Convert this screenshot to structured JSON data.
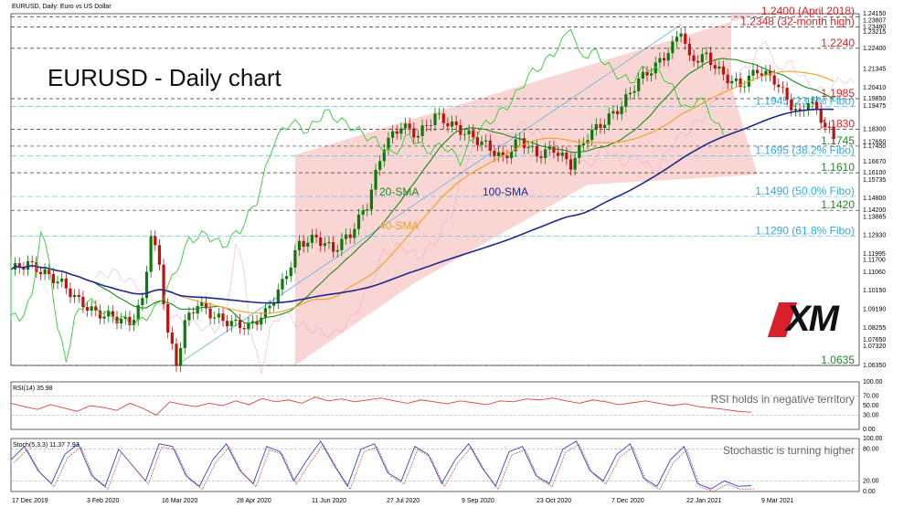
{
  "header": {
    "symbol_line": "EURUSD, Daily:  Euro vs US Dollar",
    "chart_title": "EURUSD - Daily chart"
  },
  "logo": {
    "text": "XM",
    "colors": {
      "bg": "#111111",
      "accent": "#d9202a"
    }
  },
  "colors": {
    "sma20": "#1a8a1a",
    "sma40": "#f0a020",
    "sma100": "#1f2a8a",
    "channel": "#f7c5c0",
    "resistance_label": "#e02020",
    "support_label": "#1e8a1e",
    "fibo_label": "#33aadd",
    "candle_up": "#0a7a0a",
    "candle_down": "#c01010",
    "cloud": "#f0a0c8",
    "rsi": "#e04040",
    "stoch_main": "#3344cc",
    "stoch_signal": "#cc4444"
  },
  "chart_data": {
    "type": "candlestick",
    "title": "EURUSD - Daily chart",
    "x_labels": [
      "17 Dec 2019",
      "3 Feb 2020",
      "16 Mar 2020",
      "28 Apr 2020",
      "11 Jun 2020",
      "27 Jul 2020",
      "9 Sep 2020",
      "23 Oct 2020",
      "7 Dec 2020",
      "22 Jan 2021",
      "9 Mar 2021"
    ],
    "y_ticks": [
      "1.24150",
      "1.23807",
      "1.23480",
      "1.23215",
      "1.22400",
      "1.21345",
      "1.20410",
      "1.19850",
      "1.19475",
      "1.18300",
      "1.17650",
      "1.17450",
      "1.16670",
      "1.16100",
      "1.15735",
      "1.14800",
      "1.14200",
      "1.13865",
      "1.12930",
      "1.11995",
      "1.11700",
      "1.11060",
      "1.10150",
      "1.09190",
      "1.08255",
      "1.07650",
      "1.07320",
      "1.06350"
    ],
    "ylim": [
      1.0635,
      1.2415
    ],
    "close_path": [
      [
        0,
        1.112
      ],
      [
        4,
        1.115
      ],
      [
        8,
        1.11
      ],
      [
        12,
        1.105
      ],
      [
        16,
        1.096
      ],
      [
        20,
        1.09
      ],
      [
        24,
        1.088
      ],
      [
        28,
        1.085
      ],
      [
        31,
        1.096
      ],
      [
        33,
        1.13
      ],
      [
        35,
        1.114
      ],
      [
        37,
        1.08
      ],
      [
        39,
        1.064
      ],
      [
        41,
        1.085
      ],
      [
        44,
        1.095
      ],
      [
        48,
        1.088
      ],
      [
        52,
        1.085
      ],
      [
        56,
        1.083
      ],
      [
        60,
        1.09
      ],
      [
        64,
        1.105
      ],
      [
        68,
        1.125
      ],
      [
        72,
        1.128
      ],
      [
        76,
        1.122
      ],
      [
        80,
        1.13
      ],
      [
        84,
        1.145
      ],
      [
        88,
        1.175
      ],
      [
        92,
        1.185
      ],
      [
        96,
        1.18
      ],
      [
        100,
        1.19
      ],
      [
        104,
        1.185
      ],
      [
        108,
        1.18
      ],
      [
        112,
        1.175
      ],
      [
        116,
        1.168
      ],
      [
        120,
        1.178
      ],
      [
        124,
        1.17
      ],
      [
        128,
        1.173
      ],
      [
        132,
        1.165
      ],
      [
        136,
        1.18
      ],
      [
        140,
        1.187
      ],
      [
        144,
        1.195
      ],
      [
        148,
        1.208
      ],
      [
        152,
        1.215
      ],
      [
        156,
        1.225
      ],
      [
        158,
        1.234
      ],
      [
        160,
        1.218
      ],
      [
        164,
        1.22
      ],
      [
        168,
        1.21
      ],
      [
        172,
        1.205
      ],
      [
        176,
        1.213
      ],
      [
        180,
        1.208
      ],
      [
        184,
        1.195
      ],
      [
        186,
        1.19
      ],
      [
        188,
        1.198
      ],
      [
        190,
        1.192
      ],
      [
        192,
        1.185
      ],
      [
        194,
        1.178
      ]
    ],
    "series": [
      {
        "name": "20-SMA",
        "label": "20-SMA"
      },
      {
        "name": "40-SMA",
        "label": "40-SMA"
      },
      {
        "name": "100-SMA",
        "label": "100-SMA"
      }
    ],
    "levels": [
      {
        "text": "1.2400 (April 2018)",
        "value": 1.24,
        "kind": "resistance"
      },
      {
        "text": "1.2348 (32-month high)",
        "value": 1.2348,
        "kind": "resistance"
      },
      {
        "text": "1.2240",
        "value": 1.224,
        "kind": "resistance"
      },
      {
        "text": "1.1985",
        "value": 1.1985,
        "kind": "resistance"
      },
      {
        "text": "1.1945 (23.6% Fibo)",
        "value": 1.1945,
        "kind": "fibo"
      },
      {
        "text": "1.1830",
        "value": 1.183,
        "kind": "resistance"
      },
      {
        "text": "1.1745",
        "value": 1.1745,
        "kind": "support"
      },
      {
        "text": "1.1695 (38.2% Fibo)",
        "value": 1.1695,
        "kind": "fibo"
      },
      {
        "text": "1.1610",
        "value": 1.161,
        "kind": "support"
      },
      {
        "text": "1.1490 (50.0% Fibo)",
        "value": 1.149,
        "kind": "fibo"
      },
      {
        "text": "1.1420",
        "value": 1.142,
        "kind": "support"
      },
      {
        "text": "1.1290 (61.8% Fibo)",
        "value": 1.129,
        "kind": "fibo"
      },
      {
        "text": "1.0635",
        "value": 1.0635,
        "kind": "support"
      }
    ],
    "rsi": {
      "label": "RSI(14) 35.98",
      "note": "RSI holds in negative territory",
      "ticks": [
        "100.00",
        "70.00",
        "50.00",
        "30.00",
        "0.00"
      ],
      "ylim": [
        0,
        100
      ],
      "values": [
        55,
        48,
        42,
        52,
        45,
        38,
        50,
        46,
        40,
        55,
        44,
        30,
        58,
        52,
        48,
        55,
        50,
        60,
        52,
        65,
        58,
        62,
        55,
        68,
        60,
        64,
        58,
        62,
        66,
        60,
        55,
        62,
        58,
        54,
        60,
        56,
        52,
        60,
        58,
        64,
        62,
        66,
        60,
        55,
        62,
        58,
        52,
        56,
        60,
        55,
        50,
        54,
        48,
        45,
        42,
        38,
        36
      ]
    },
    "stochastic": {
      "label": "Stoch(5,3,3) 11.37 7.93",
      "note": "Stochastic is turning higher",
      "ticks": [
        "100.00",
        "80.00",
        "20.00",
        "0.00"
      ],
      "ylim": [
        0,
        100
      ],
      "values": [
        60,
        85,
        40,
        15,
        70,
        90,
        30,
        10,
        80,
        50,
        20,
        90,
        85,
        30,
        10,
        60,
        90,
        40,
        15,
        85,
        75,
        20,
        60,
        95,
        50,
        10,
        80,
        90,
        35,
        20,
        85,
        70,
        15,
        60,
        90,
        45,
        10,
        75,
        85,
        30,
        15,
        80,
        95,
        40,
        20,
        70,
        90,
        25,
        10,
        60,
        85,
        15,
        5,
        20,
        10,
        11
      ]
    }
  }
}
